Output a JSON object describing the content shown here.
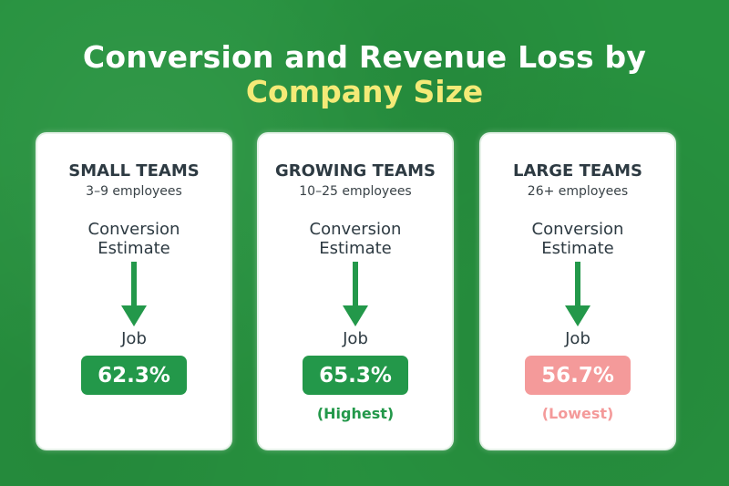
{
  "title": {
    "line1": "Conversion and Revenue Loss by",
    "line2": "Company Size"
  },
  "colors": {
    "background": "#27923f",
    "title_highlight": "#f4ea77",
    "accent_green": "#23984a",
    "accent_pink": "#f49a9a"
  },
  "cards": [
    {
      "team": "SMALL TEAMS",
      "employees": "3–9 employees",
      "conversion_line1": "Conversion",
      "conversion_line2": "Estimate",
      "arrow_icon": "arrow-down-icon",
      "job": "Job",
      "rate": "62.3%",
      "note": ""
    },
    {
      "team": "GROWING TEAMS",
      "employees": "10–25 employees",
      "conversion_line1": "Conversion",
      "conversion_line2": "Estimate",
      "arrow_icon": "arrow-down-icon",
      "job": "Job",
      "rate": "65.3%",
      "note": "(Highest)"
    },
    {
      "team": "LARGE TEAMS",
      "employees": "26+ employees",
      "conversion_line1": "Conversion",
      "conversion_line2": "Estimate",
      "arrow_icon": "arrow-down-icon",
      "job": "Job",
      "rate": "56.7%",
      "note": "(Lowest)"
    }
  ]
}
